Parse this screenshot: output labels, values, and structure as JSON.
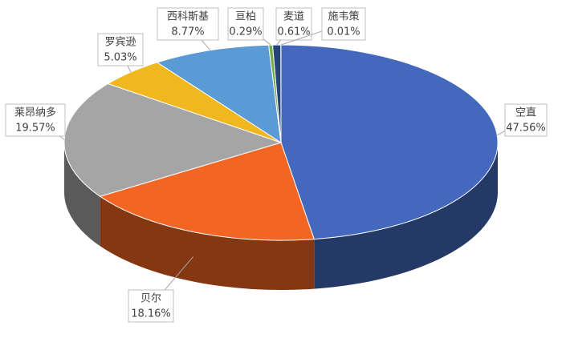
{
  "chart_data": {
    "type": "pie3d",
    "categories": [
      "空直",
      "贝尔",
      "莱昂纳多",
      "罗宾逊",
      "西科斯基",
      "亘柏",
      "麦道",
      "施韦策"
    ],
    "values": [
      47.56,
      18.16,
      19.57,
      5.03,
      8.77,
      0.29,
      0.61,
      0.01
    ],
    "value_labels": [
      "47.56%",
      "18.16%",
      "19.57%",
      "5.03%",
      "8.77%",
      "0.29%",
      "0.61%",
      "0.01%"
    ],
    "colors": [
      "#4468bd",
      "#f26522",
      "#a5a5a5",
      "#f0b81e",
      "#5b9bd5",
      "#70ad47",
      "#264478",
      "#9e480e"
    ]
  }
}
